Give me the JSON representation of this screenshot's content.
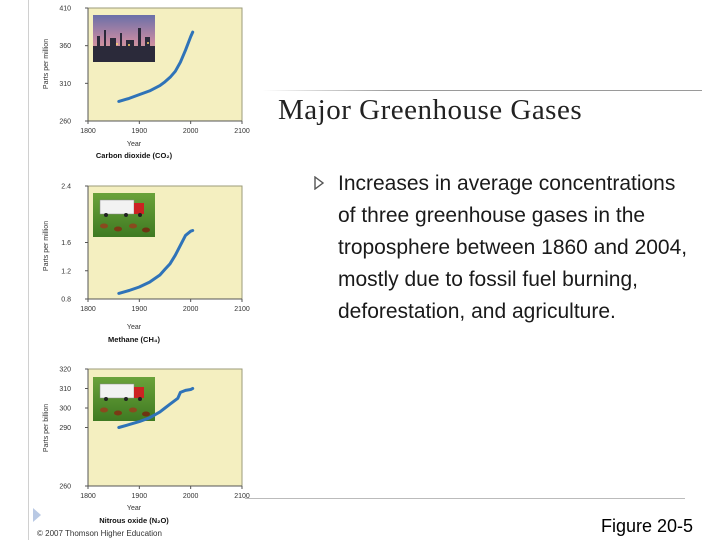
{
  "slide": {
    "title": "Major Greenhouse Gases",
    "body": "Increases in average concentrations of three greenhouse gases in the troposphere between 1860 and 2004, mostly due to fossil fuel burning, deforestation, and agriculture.",
    "figure_label": "Figure 20-5",
    "copyright": "© 2007 Thomson Higher Education"
  },
  "colors": {
    "panel": "#f4efc0",
    "curve": "#2f73b8",
    "text": "#1a1a1a"
  },
  "chart_data": [
    {
      "type": "line",
      "title": "Carbon dioxide (CO₂)",
      "xlabel": "Year",
      "ylabel": "Parts per million",
      "xlim": [
        1800,
        2100
      ],
      "ylim": [
        260,
        410
      ],
      "xticks": [
        "1800",
        "1900",
        "2000",
        "2100"
      ],
      "yticks": [
        "260",
        "310",
        "360",
        "410"
      ],
      "grid": false,
      "x": [
        1860,
        1880,
        1900,
        1920,
        1940,
        1950,
        1960,
        1970,
        1980,
        1990,
        2000,
        2004
      ],
      "y": [
        286,
        290,
        295,
        300,
        307,
        312,
        318,
        326,
        338,
        354,
        372,
        378
      ]
    },
    {
      "type": "line",
      "title": "Methane (CH₄)",
      "xlabel": "Year",
      "ylabel": "Parts per million",
      "xlim": [
        1800,
        2100
      ],
      "ylim": [
        0.8,
        2.4
      ],
      "xticks": [
        "1800",
        "1900",
        "2000",
        "2100"
      ],
      "yticks": [
        "0.8",
        "1.2",
        "1.6",
        "2.4"
      ],
      "grid": false,
      "x": [
        1860,
        1880,
        1900,
        1920,
        1940,
        1950,
        1960,
        1970,
        1980,
        1990,
        2000,
        2004
      ],
      "y": [
        0.88,
        0.92,
        0.97,
        1.04,
        1.14,
        1.22,
        1.3,
        1.42,
        1.56,
        1.7,
        1.76,
        1.77
      ]
    },
    {
      "type": "line",
      "title": "Nitrous oxide (N₂O)",
      "xlabel": "Year",
      "ylabel": "Parts per billion",
      "xlim": [
        1800,
        2100
      ],
      "ylim": [
        260,
        320
      ],
      "xticks": [
        "1800",
        "1900",
        "2000",
        "2100"
      ],
      "yticks": [
        "260",
        "290",
        "300",
        "310",
        "320"
      ],
      "grid": false,
      "x": [
        1860,
        1880,
        1900,
        1920,
        1940,
        1950,
        1960,
        1970,
        1975,
        1980,
        1990,
        2000,
        2004
      ],
      "y": [
        290,
        291.5,
        293,
        295,
        298,
        300,
        302,
        304,
        305,
        308,
        309,
        309.5,
        310
      ]
    }
  ]
}
